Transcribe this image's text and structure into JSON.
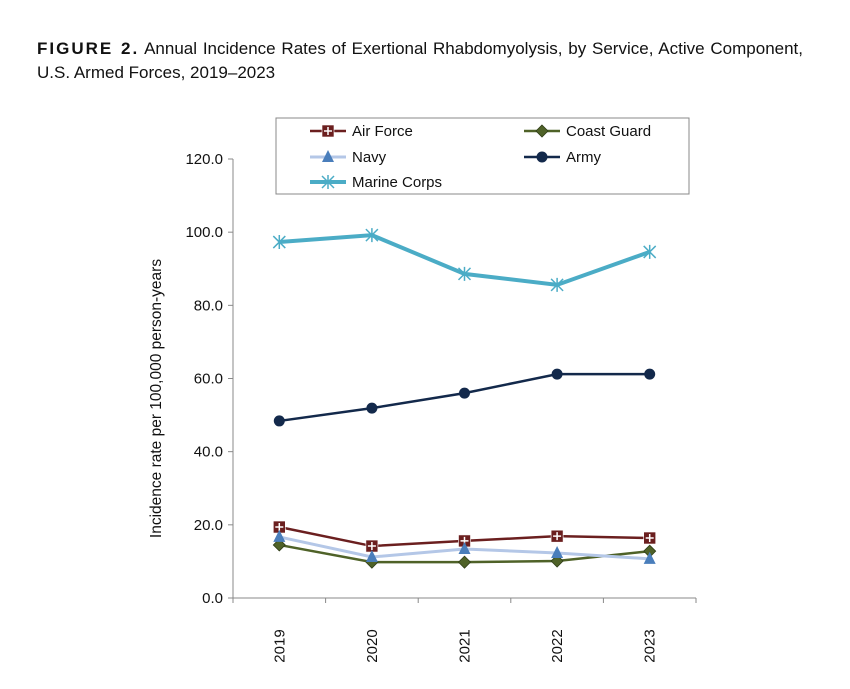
{
  "figure": {
    "label": "FIGURE 2.",
    "caption": "Annual Incidence Rates of Exertional Rhabdomyolysis, by Service, Active Component, U.S. Armed Forces, 2019–2023"
  },
  "chart_data": {
    "type": "line",
    "title": "",
    "xlabel": "",
    "ylabel": "Incidence rate per 100,000 person-years",
    "ylim": [
      0,
      120
    ],
    "yticks": [
      "0.0",
      "20.0",
      "40.0",
      "60.0",
      "80.0",
      "100.0",
      "120.0"
    ],
    "categories": [
      "2019",
      "2020",
      "2021",
      "2022",
      "2023"
    ],
    "grid": false,
    "legend_placement": "top",
    "series": [
      {
        "name": "Air Force",
        "color": "#6b1f1f",
        "marker": "square-plus",
        "values": [
          19.4,
          14.2,
          15.6,
          16.9,
          16.4
        ]
      },
      {
        "name": "Coast Guard",
        "color": "#4f6228",
        "marker": "diamond",
        "values": [
          14.5,
          9.8,
          9.8,
          10.1,
          12.8
        ]
      },
      {
        "name": "Navy",
        "color": "#b4c7e7",
        "marker_color": "#4a7ebb",
        "marker": "triangle",
        "values": [
          16.7,
          11.2,
          13.4,
          12.3,
          10.7
        ]
      },
      {
        "name": "Army",
        "color": "#13294b",
        "marker": "circle",
        "values": [
          48.4,
          51.9,
          56.0,
          61.2,
          61.2
        ]
      },
      {
        "name": "Marine Corps",
        "color": "#4bacc6",
        "marker": "star",
        "values": [
          97.3,
          99.2,
          88.6,
          85.6,
          94.6
        ]
      }
    ]
  }
}
